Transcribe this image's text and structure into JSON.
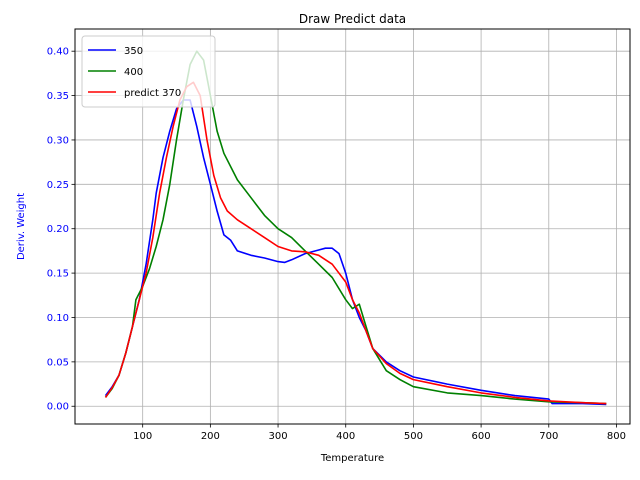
{
  "chart_data": {
    "type": "line",
    "title": "Draw Predict data",
    "xlabel": "Temperature",
    "ylabel": "Deriv. Weight",
    "xlim": [
      0,
      820
    ],
    "ylim": [
      -0.02,
      0.425
    ],
    "xticks": [
      100,
      200,
      300,
      400,
      500,
      600,
      700,
      800
    ],
    "yticks": [
      0.0,
      0.05,
      0.1,
      0.15,
      0.2,
      0.25,
      0.3,
      0.35,
      0.4
    ],
    "xtick_labels": [
      "100",
      "200",
      "300",
      "400",
      "500",
      "600",
      "700",
      "800"
    ],
    "ytick_labels": [
      "0.00",
      "0.05",
      "0.10",
      "0.15",
      "0.20",
      "0.25",
      "0.30",
      "0.35",
      "0.40"
    ],
    "grid": true,
    "legend_position": "top-left",
    "ylabel_color": "#0000ff",
    "series": [
      {
        "name": "350",
        "color": "#0000ff",
        "x": [
          45,
          55,
          65,
          75,
          85,
          95,
          105,
          115,
          120,
          130,
          140,
          150,
          160,
          170,
          180,
          190,
          200,
          210,
          220,
          230,
          240,
          260,
          280,
          300,
          310,
          320,
          340,
          360,
          370,
          380,
          390,
          400,
          410,
          420,
          430,
          440,
          460,
          480,
          500,
          550,
          600,
          650,
          700,
          705,
          750,
          785
        ],
        "y": [
          0.012,
          0.022,
          0.035,
          0.06,
          0.09,
          0.12,
          0.16,
          0.21,
          0.24,
          0.28,
          0.31,
          0.335,
          0.345,
          0.345,
          0.315,
          0.28,
          0.25,
          0.22,
          0.193,
          0.187,
          0.175,
          0.17,
          0.167,
          0.163,
          0.162,
          0.165,
          0.172,
          0.176,
          0.178,
          0.178,
          0.172,
          0.15,
          0.12,
          0.1,
          0.085,
          0.065,
          0.05,
          0.04,
          0.033,
          0.025,
          0.018,
          0.012,
          0.008,
          0.003,
          0.003,
          0.002
        ]
      },
      {
        "name": "400",
        "color": "#008000",
        "x": [
          45,
          55,
          65,
          75,
          85,
          90,
          100,
          110,
          120,
          130,
          140,
          150,
          160,
          170,
          180,
          190,
          200,
          210,
          220,
          240,
          260,
          280,
          300,
          320,
          340,
          360,
          380,
          400,
          410,
          420,
          430,
          440,
          460,
          480,
          500,
          550,
          600,
          650,
          700,
          750,
          785
        ],
        "y": [
          0.01,
          0.02,
          0.035,
          0.06,
          0.09,
          0.12,
          0.135,
          0.155,
          0.18,
          0.21,
          0.25,
          0.3,
          0.345,
          0.385,
          0.4,
          0.39,
          0.35,
          0.31,
          0.285,
          0.255,
          0.235,
          0.215,
          0.2,
          0.19,
          0.175,
          0.16,
          0.145,
          0.12,
          0.11,
          0.115,
          0.09,
          0.065,
          0.04,
          0.03,
          0.022,
          0.015,
          0.012,
          0.008,
          0.005,
          0.004,
          0.003
        ]
      },
      {
        "name": "predict 370",
        "color": "#ff0000",
        "x": [
          45,
          55,
          65,
          75,
          85,
          95,
          105,
          115,
          125,
          135,
          145,
          155,
          165,
          175,
          185,
          195,
          205,
          215,
          225,
          240,
          260,
          280,
          300,
          320,
          340,
          360,
          380,
          400,
          410,
          420,
          430,
          440,
          460,
          480,
          500,
          550,
          600,
          650,
          700,
          750,
          785
        ],
        "y": [
          0.01,
          0.021,
          0.035,
          0.06,
          0.09,
          0.12,
          0.15,
          0.19,
          0.24,
          0.28,
          0.315,
          0.345,
          0.36,
          0.365,
          0.35,
          0.3,
          0.26,
          0.235,
          0.22,
          0.21,
          0.2,
          0.19,
          0.18,
          0.175,
          0.174,
          0.17,
          0.16,
          0.14,
          0.12,
          0.105,
          0.085,
          0.065,
          0.048,
          0.037,
          0.03,
          0.022,
          0.015,
          0.01,
          0.006,
          0.004,
          0.003
        ]
      }
    ]
  }
}
